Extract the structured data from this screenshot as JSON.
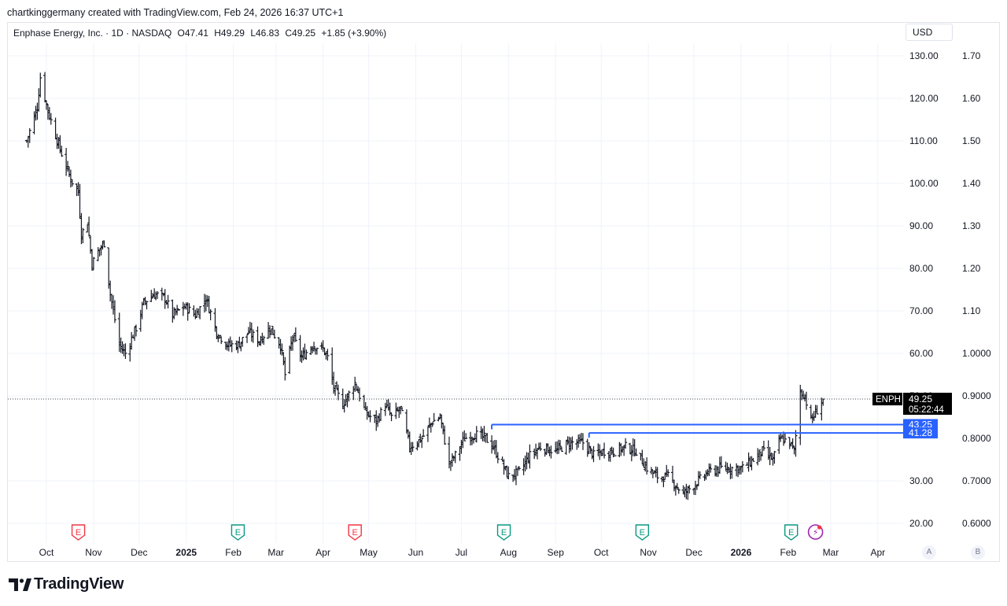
{
  "header": {
    "credit": "chartkinggermany created with TradingView.com, Feb 24, 2026 16:37 UTC+1",
    "symbol_name": "Enphase Energy, Inc. · 1D · NASDAQ",
    "open": "O47.41",
    "high": "H49.29",
    "low": "L46.83",
    "close": "C49.25",
    "change": "+1.85 (+3.90%)",
    "currency": "USD"
  },
  "footer": {
    "brand": "TradingView",
    "toggle_a": "A",
    "toggle_b": "B"
  },
  "colors": {
    "bar": "#131722",
    "level_line": "#2962ff",
    "level_badge": "#2962ff",
    "price_badge": "#000000",
    "earnings": "#f23645",
    "dividend": "#089981",
    "flash": "#9c27b0",
    "grid": "#f0f3fa"
  },
  "chart_data": {
    "type": "ohlc",
    "symbol": "ENPH",
    "interval": "1D",
    "exchange": "NASDAQ",
    "ylim": [
      20,
      130
    ],
    "right_axis_labels": [
      "130.00",
      "120.00",
      "110.00",
      "100.00",
      "90.00",
      "80.00",
      "70.00",
      "60.00",
      "50.00",
      "30.00",
      "20.00"
    ],
    "right_axis_values": [
      130,
      120,
      110,
      100,
      90,
      80,
      70,
      60,
      50,
      30,
      20
    ],
    "secondary_axis_labels": [
      "1.70",
      "1.60",
      "1.50",
      "1.40",
      "1.30",
      "1.20",
      "1.10",
      "1.0000",
      "0.9000",
      "0.8000",
      "0.7000",
      "0.6000"
    ],
    "secondary_axis_values": [
      130,
      120,
      110,
      100,
      90,
      80,
      70,
      60,
      50,
      40,
      30,
      20
    ],
    "x_labels": [
      "Oct",
      "Nov",
      "Dec",
      "2025",
      "Feb",
      "Mar",
      "Apr",
      "May",
      "Jun",
      "Jul",
      "Aug",
      "Sep",
      "Oct",
      "Nov",
      "Dec",
      "2026",
      "Feb",
      "Mar",
      "Apr"
    ],
    "x_label_dates": [
      "2024-10-01",
      "2024-11-01",
      "2024-12-01",
      "2025-01-01",
      "2025-02-01",
      "2025-03-01",
      "2025-04-01",
      "2025-05-01",
      "2025-06-01",
      "2025-07-01",
      "2025-08-01",
      "2025-09-01",
      "2025-10-01",
      "2025-11-01",
      "2025-12-01",
      "2026-01-01",
      "2026-02-01",
      "2026-03-01",
      "2026-04-01"
    ],
    "x_label_bold": [
      false,
      false,
      false,
      true,
      false,
      false,
      false,
      false,
      false,
      false,
      false,
      false,
      false,
      false,
      false,
      true,
      false,
      false,
      false
    ],
    "series_anchors": [
      [
        "2024-09-18",
        110
      ],
      [
        "2024-09-25",
        118
      ],
      [
        "2024-09-27",
        125
      ],
      [
        "2024-10-02",
        117
      ],
      [
        "2024-10-10",
        108
      ],
      [
        "2024-10-17",
        101
      ],
      [
        "2024-10-22",
        98
      ],
      [
        "2024-10-24",
        88
      ],
      [
        "2024-10-28",
        91
      ],
      [
        "2024-10-31",
        81
      ],
      [
        "2024-11-04",
        84
      ],
      [
        "2024-11-08",
        86
      ],
      [
        "2024-11-12",
        74
      ],
      [
        "2024-11-18",
        62
      ],
      [
        "2024-11-22",
        60
      ],
      [
        "2024-11-29",
        66
      ],
      [
        "2024-12-04",
        72
      ],
      [
        "2024-12-11",
        74
      ],
      [
        "2024-12-18",
        73
      ],
      [
        "2024-12-23",
        69
      ],
      [
        "2024-12-31",
        71
      ],
      [
        "2025-01-07",
        69
      ],
      [
        "2025-01-14",
        73
      ],
      [
        "2025-01-21",
        65
      ],
      [
        "2025-01-28",
        62
      ],
      [
        "2025-02-04",
        62
      ],
      [
        "2025-02-11",
        65
      ],
      [
        "2025-02-18",
        63
      ],
      [
        "2025-02-25",
        66
      ],
      [
        "2025-03-04",
        62
      ],
      [
        "2025-03-07",
        55
      ],
      [
        "2025-03-12",
        64
      ],
      [
        "2025-03-18",
        59
      ],
      [
        "2025-03-25",
        62
      ],
      [
        "2025-04-01",
        61
      ],
      [
        "2025-04-04",
        59
      ],
      [
        "2025-04-08",
        52
      ],
      [
        "2025-04-14",
        48
      ],
      [
        "2025-04-22",
        53
      ],
      [
        "2025-04-29",
        46
      ],
      [
        "2025-05-06",
        44
      ],
      [
        "2025-05-12",
        48
      ],
      [
        "2025-05-16",
        45
      ],
      [
        "2025-05-22",
        47
      ],
      [
        "2025-05-28",
        38
      ],
      [
        "2025-06-05",
        40
      ],
      [
        "2025-06-12",
        44
      ],
      [
        "2025-06-17",
        45
      ],
      [
        "2025-06-23",
        34
      ],
      [
        "2025-06-27",
        36
      ],
      [
        "2025-07-03",
        40
      ],
      [
        "2025-07-10",
        41
      ],
      [
        "2025-07-17",
        40
      ],
      [
        "2025-07-22",
        38
      ],
      [
        "2025-08-01",
        31
      ],
      [
        "2025-08-08",
        32
      ],
      [
        "2025-08-15",
        36
      ],
      [
        "2025-08-22",
        38
      ],
      [
        "2025-09-01",
        37
      ],
      [
        "2025-09-10",
        39
      ],
      [
        "2025-09-19",
        39
      ],
      [
        "2025-09-26",
        36
      ],
      [
        "2025-10-03",
        37
      ],
      [
        "2025-10-10",
        37
      ],
      [
        "2025-10-17",
        38
      ],
      [
        "2025-10-24",
        37
      ],
      [
        "2025-10-31",
        33
      ],
      [
        "2025-11-07",
        31
      ],
      [
        "2025-11-14",
        31
      ],
      [
        "2025-11-19",
        29
      ],
      [
        "2025-11-24",
        27
      ],
      [
        "2025-12-01",
        29
      ],
      [
        "2025-12-10",
        32
      ],
      [
        "2025-12-19",
        33
      ],
      [
        "2026-01-02",
        33
      ],
      [
        "2026-01-09",
        35
      ],
      [
        "2026-01-15",
        37
      ],
      [
        "2026-01-22",
        35
      ],
      [
        "2026-01-27",
        40
      ],
      [
        "2026-02-02",
        39
      ],
      [
        "2026-02-05",
        37
      ],
      [
        "2026-02-09",
        51
      ],
      [
        "2026-02-12",
        50
      ],
      [
        "2026-02-16",
        44
      ],
      [
        "2026-02-19",
        46
      ],
      [
        "2026-02-24",
        49.25
      ]
    ],
    "hlines": [
      {
        "label": "43.25",
        "value": 43.25,
        "from": "2025-07-21"
      },
      {
        "label": "41.28",
        "value": 41.28,
        "from": "2025-09-23"
      }
    ],
    "last_price": {
      "symbol": "ENPH",
      "value": "49.25",
      "countdown": "05:22:44",
      "y": 49.25
    },
    "events": [
      {
        "type": "earnings",
        "letter": "E",
        "date": "2024-10-22"
      },
      {
        "type": "dividend",
        "letter": "E",
        "date": "2025-02-04"
      },
      {
        "type": "earnings",
        "letter": "E",
        "date": "2025-04-22"
      },
      {
        "type": "dividend",
        "letter": "E",
        "date": "2025-07-29"
      },
      {
        "type": "dividend",
        "letter": "E",
        "date": "2025-10-28"
      },
      {
        "type": "dividend",
        "letter": "E",
        "date": "2026-02-03"
      },
      {
        "type": "flash",
        "letter": "⚡",
        "date": "2026-02-19"
      }
    ],
    "grid": true
  }
}
